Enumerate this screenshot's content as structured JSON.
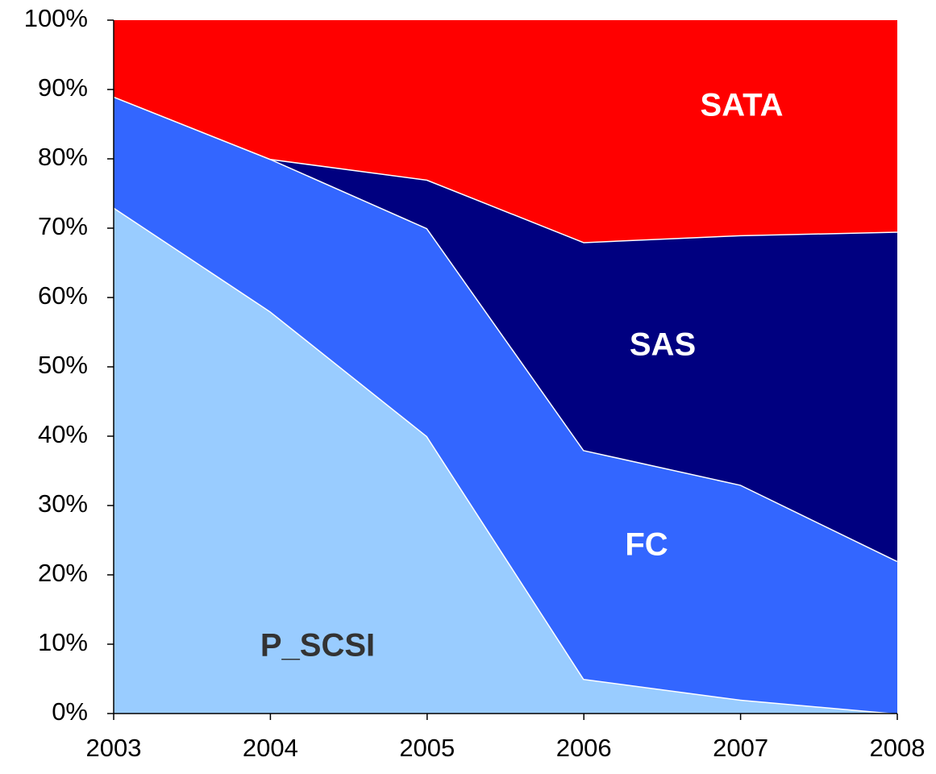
{
  "chart_data": {
    "type": "stacked_area",
    "categories": [
      "2003",
      "2004",
      "2005",
      "2006",
      "2007",
      "2008"
    ],
    "series": [
      {
        "name": "P_SCSI",
        "color": "#99ccff",
        "values": [
          73,
          58,
          40,
          5,
          2,
          0
        ]
      },
      {
        "name": "FC",
        "color": "#3366ff",
        "values": [
          16,
          22,
          30,
          33,
          31,
          22
        ]
      },
      {
        "name": "SAS",
        "color": "#000080",
        "values": [
          0,
          0,
          7,
          30,
          36,
          47.5
        ]
      },
      {
        "name": "SATA",
        "color": "#ff0000",
        "values": [
          11,
          20,
          23,
          32,
          31,
          30.5
        ]
      }
    ],
    "ylim": [
      0,
      100
    ],
    "yticks": [
      {
        "value": 0,
        "label": "0%"
      },
      {
        "value": 10,
        "label": "10%"
      },
      {
        "value": 20,
        "label": "20%"
      },
      {
        "value": 30,
        "label": "30%"
      },
      {
        "value": 40,
        "label": "40%"
      },
      {
        "value": 50,
        "label": "50%"
      },
      {
        "value": 60,
        "label": "60%"
      },
      {
        "value": 70,
        "label": "70%"
      },
      {
        "value": 80,
        "label": "80%"
      },
      {
        "value": 90,
        "label": "90%"
      },
      {
        "value": 100,
        "label": "100%"
      }
    ],
    "grid": false
  }
}
